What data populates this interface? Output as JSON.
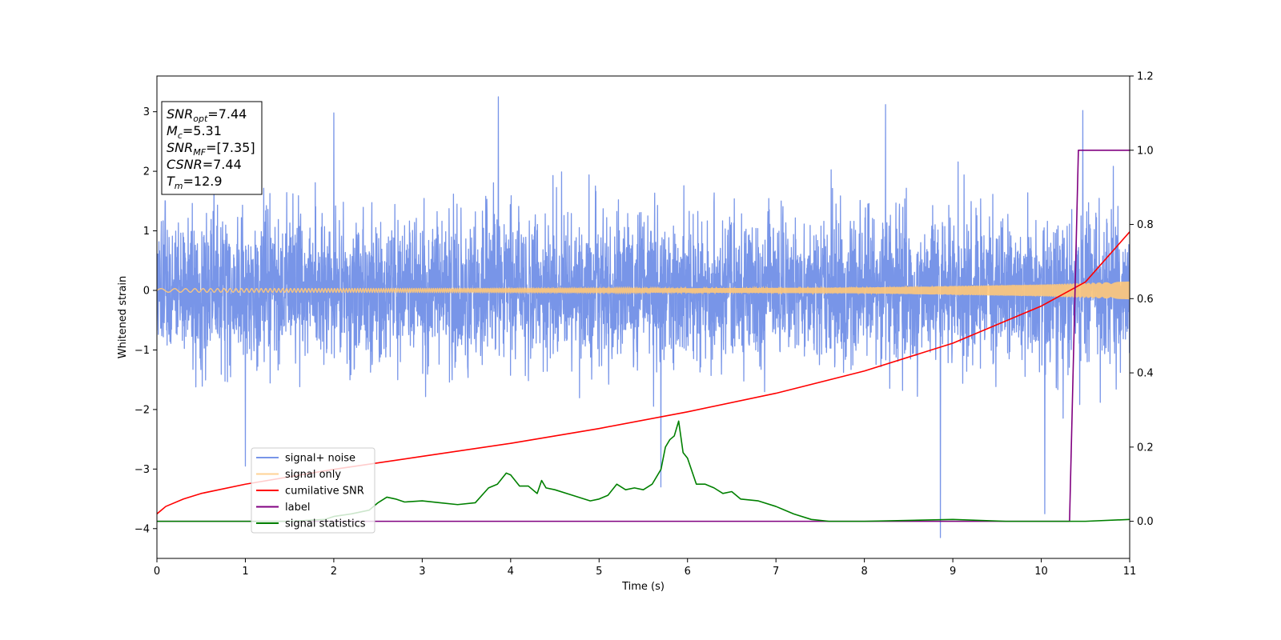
{
  "chart_data": {
    "type": "line",
    "title": "",
    "xlabel": "Time (s)",
    "ylabel": "Whitened strain",
    "y2label": "",
    "xlim": [
      0,
      11
    ],
    "ylim": [
      -4.5,
      3.6
    ],
    "y2lim": [
      -0.1,
      1.2
    ],
    "xticks": [
      0,
      1,
      2,
      3,
      4,
      5,
      6,
      7,
      8,
      9,
      10,
      11
    ],
    "yticks": [
      -4,
      -3,
      -2,
      -1,
      0,
      1,
      2,
      3
    ],
    "y2ticks": [
      0.0,
      0.2,
      0.4,
      0.6,
      0.8,
      1.0,
      1.2
    ],
    "grid": false,
    "legend_position": "lower-left",
    "annotation": {
      "lines": [
        {
          "main": "SNR",
          "sub": "opt",
          "value": "=7.44"
        },
        {
          "main": "M",
          "sub": "c",
          "value": "=5.31"
        },
        {
          "main": "SNR",
          "sub": "MF",
          "value": "=[7.35]"
        },
        {
          "main": "CSNR",
          "sub": "",
          "value": "=7.44"
        },
        {
          "main": "T",
          "sub": "m",
          "value": "=12.9"
        }
      ]
    },
    "series": [
      {
        "name": "signal+ noise",
        "axis": "left",
        "color": "#7895e8",
        "kind": "noise",
        "approx_std": 0.62,
        "range": [
          -4.15,
          3.25
        ],
        "peaks": [
          {
            "x": 3.86,
            "y": 3.25
          },
          {
            "x": 8.24,
            "y": 3.12
          },
          {
            "x": 10.47,
            "y": 3.02
          },
          {
            "x": 2.0,
            "y": 2.98
          },
          {
            "x": 8.86,
            "y": -4.15
          },
          {
            "x": 1.0,
            "y": -2.95
          },
          {
            "x": 10.04,
            "y": -3.75
          },
          {
            "x": 5.7,
            "y": -3.3
          }
        ]
      },
      {
        "name": "signal only",
        "axis": "left",
        "color": "#ffc87a",
        "kind": "chirp",
        "amplitude_points": [
          [
            0,
            0.03
          ],
          [
            6,
            0.035
          ],
          [
            8,
            0.05
          ],
          [
            10,
            0.1
          ],
          [
            11,
            0.15
          ]
        ]
      },
      {
        "name": "cumilative SNR",
        "axis": "right",
        "color": "#ff0000",
        "x": [
          0,
          0.1,
          0.3,
          0.5,
          1,
          2,
          3,
          4,
          5,
          6,
          7,
          8,
          9,
          10,
          10.5,
          11
        ],
        "y": [
          0.02,
          0.04,
          0.06,
          0.075,
          0.1,
          0.14,
          0.175,
          0.21,
          0.25,
          0.295,
          0.345,
          0.405,
          0.48,
          0.58,
          0.645,
          0.78
        ]
      },
      {
        "name": "label",
        "axis": "right",
        "color": "#800080",
        "x": [
          0,
          10.32,
          10.42,
          11
        ],
        "y": [
          0,
          0,
          1,
          1
        ]
      },
      {
        "name": "signal statistics",
        "axis": "right",
        "color": "#008000",
        "x": [
          0,
          1.5,
          1.9,
          2.0,
          2.2,
          2.4,
          2.5,
          2.6,
          2.7,
          2.8,
          3.0,
          3.2,
          3.4,
          3.6,
          3.75,
          3.85,
          3.95,
          4.0,
          4.1,
          4.2,
          4.3,
          4.35,
          4.4,
          4.5,
          4.7,
          4.9,
          5.0,
          5.1,
          5.2,
          5.3,
          5.4,
          5.5,
          5.6,
          5.7,
          5.75,
          5.8,
          5.85,
          5.9,
          5.95,
          6.0,
          6.1,
          6.2,
          6.3,
          6.4,
          6.5,
          6.6,
          6.8,
          7.0,
          7.2,
          7.4,
          7.6,
          8.0,
          9.0,
          9.6,
          10.0,
          10.5,
          11.0
        ],
        "y": [
          0.0,
          0.0,
          0.005,
          0.013,
          0.02,
          0.03,
          0.05,
          0.065,
          0.06,
          0.052,
          0.055,
          0.05,
          0.045,
          0.05,
          0.09,
          0.1,
          0.13,
          0.125,
          0.095,
          0.095,
          0.075,
          0.11,
          0.09,
          0.085,
          0.07,
          0.055,
          0.06,
          0.07,
          0.1,
          0.085,
          0.09,
          0.085,
          0.1,
          0.14,
          0.2,
          0.22,
          0.23,
          0.27,
          0.185,
          0.17,
          0.1,
          0.1,
          0.09,
          0.075,
          0.08,
          0.06,
          0.055,
          0.04,
          0.02,
          0.005,
          0.0,
          0.0,
          0.005,
          0.0,
          0.0,
          0.0,
          0.005
        ]
      }
    ]
  }
}
